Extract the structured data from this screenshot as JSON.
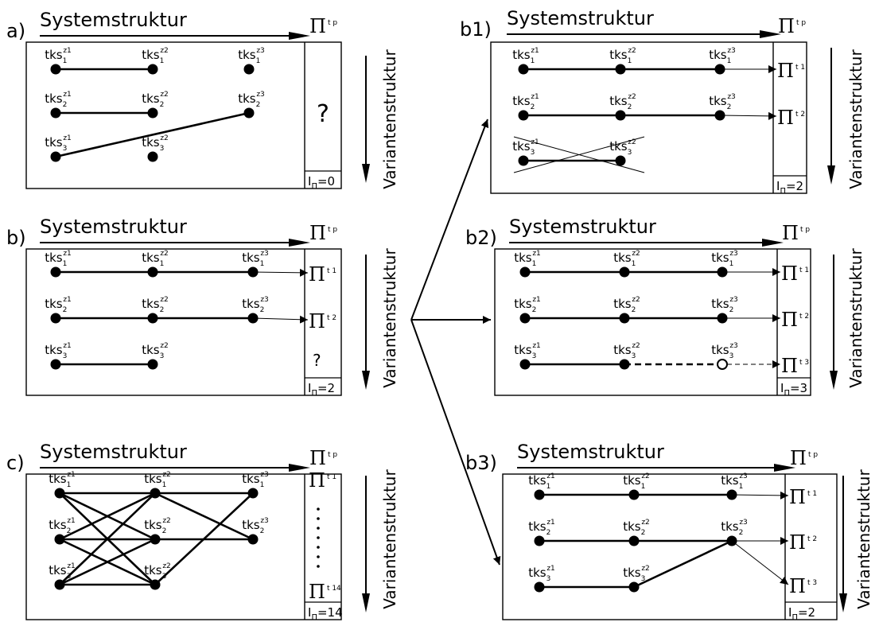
{
  "header_label": "Systemstruktur",
  "side_label": "Variantenstruktur",
  "pi_symbol": "Π",
  "node_base": "tks",
  "question_mark": "?",
  "dots": "⋮",
  "panels": [
    {
      "id": "a",
      "label": "a)",
      "pi_head": "t p",
      "pi_labels": [],
      "question": true,
      "question_small": false,
      "index": "=0",
      "edges_thick": [
        [
          0,
          1
        ],
        [
          3,
          4
        ],
        [
          5,
          6
        ]
      ],
      "edges_dashed": [],
      "thin_arrows": [],
      "crossed": false,
      "open_nodes": [],
      "nodes": [
        {
          "row": 1,
          "col": 1
        },
        {
          "row": 1,
          "col": 2
        },
        {
          "row": 1,
          "col": 3
        },
        {
          "row": 2,
          "col": 1
        },
        {
          "row": 2,
          "col": 2
        },
        {
          "row": 2,
          "col": 3
        },
        {
          "row": 3,
          "col": 1
        },
        {
          "row": 3,
          "col": 2
        }
      ]
    },
    {
      "id": "b",
      "label": "b)",
      "pi_head": "t p",
      "pi_labels": [
        "t 1",
        "t 2"
      ],
      "question": false,
      "question_small": true,
      "index": "=2",
      "edges_thick": [
        [
          0,
          1
        ],
        [
          1,
          2
        ],
        [
          3,
          4
        ],
        [
          4,
          5
        ],
        [
          6,
          7
        ]
      ],
      "edges_dashed": [],
      "thin_arrows": [
        [
          2,
          0
        ],
        [
          5,
          1
        ]
      ],
      "crossed": false,
      "open_nodes": [],
      "nodes": [
        {
          "row": 1,
          "col": 1
        },
        {
          "row": 1,
          "col": 2
        },
        {
          "row": 1,
          "col": 3
        },
        {
          "row": 2,
          "col": 1
        },
        {
          "row": 2,
          "col": 2
        },
        {
          "row": 2,
          "col": 3
        },
        {
          "row": 3,
          "col": 1
        },
        {
          "row": 3,
          "col": 2
        }
      ]
    },
    {
      "id": "c",
      "label": "c)",
      "pi_head": "t p",
      "pi_labels": [
        "t 1",
        "t 14"
      ],
      "question": false,
      "question_small": false,
      "index": "=14",
      "edges_thick": [
        [
          0,
          1
        ],
        [
          1,
          2
        ],
        [
          3,
          4
        ],
        [
          4,
          5
        ],
        [
          6,
          7
        ],
        [
          0,
          4
        ],
        [
          0,
          7
        ],
        [
          3,
          1
        ],
        [
          3,
          7
        ],
        [
          6,
          1
        ],
        [
          6,
          4
        ],
        [
          7,
          2
        ],
        [
          1,
          5
        ]
      ],
      "edges_dashed": [],
      "thin_arrows": [],
      "crossed": false,
      "open_nodes": [],
      "nodes": [
        {
          "row": 1,
          "col": 1
        },
        {
          "row": 1,
          "col": 2
        },
        {
          "row": 1,
          "col": 3
        },
        {
          "row": 2,
          "col": 1
        },
        {
          "row": 2,
          "col": 2
        },
        {
          "row": 2,
          "col": 3
        },
        {
          "row": 3,
          "col": 1
        },
        {
          "row": 3,
          "col": 2
        }
      ]
    },
    {
      "id": "b1",
      "label": "b1)",
      "pi_head": "t p",
      "pi_labels": [
        "t 1",
        "t 2"
      ],
      "question": false,
      "question_small": false,
      "index": "=2",
      "edges_thick": [
        [
          0,
          1
        ],
        [
          1,
          2
        ],
        [
          3,
          4
        ],
        [
          4,
          5
        ],
        [
          6,
          7
        ]
      ],
      "edges_dashed": [],
      "thin_arrows": [
        [
          2,
          0
        ],
        [
          5,
          1
        ]
      ],
      "crossed": true,
      "open_nodes": [],
      "nodes": [
        {
          "row": 1,
          "col": 1
        },
        {
          "row": 1,
          "col": 2
        },
        {
          "row": 1,
          "col": 3
        },
        {
          "row": 2,
          "col": 1
        },
        {
          "row": 2,
          "col": 2
        },
        {
          "row": 2,
          "col": 3
        },
        {
          "row": 3,
          "col": 1
        },
        {
          "row": 3,
          "col": 2
        }
      ]
    },
    {
      "id": "b2",
      "label": "b2)",
      "pi_head": "t p",
      "pi_labels": [
        "t 1",
        "t 2",
        "t 3"
      ],
      "question": false,
      "question_small": false,
      "index": "=3",
      "edges_thick": [
        [
          0,
          1
        ],
        [
          1,
          2
        ],
        [
          3,
          4
        ],
        [
          4,
          5
        ],
        [
          6,
          7
        ]
      ],
      "edges_dashed": [
        [
          7,
          8
        ]
      ],
      "thin_arrows": [
        [
          2,
          0
        ],
        [
          5,
          1
        ]
      ],
      "crossed": false,
      "open_nodes": [
        8
      ],
      "nodes": [
        {
          "row": 1,
          "col": 1
        },
        {
          "row": 1,
          "col": 2
        },
        {
          "row": 1,
          "col": 3
        },
        {
          "row": 2,
          "col": 1
        },
        {
          "row": 2,
          "col": 2
        },
        {
          "row": 2,
          "col": 3
        },
        {
          "row": 3,
          "col": 1
        },
        {
          "row": 3,
          "col": 2
        },
        {
          "row": 3,
          "col": 3
        }
      ]
    },
    {
      "id": "b3",
      "label": "b3)",
      "pi_head": "t p",
      "pi_labels": [
        "t 1",
        "t 2",
        "t 3"
      ],
      "question": false,
      "question_small": false,
      "index": "=2",
      "edges_thick": [
        [
          0,
          1
        ],
        [
          1,
          2
        ],
        [
          3,
          4
        ],
        [
          4,
          5
        ],
        [
          6,
          7
        ],
        [
          7,
          5
        ]
      ],
      "edges_dashed": [],
      "thin_arrows": [
        [
          2,
          0
        ],
        [
          5,
          1
        ],
        [
          5,
          2
        ]
      ],
      "crossed": false,
      "open_nodes": [],
      "nodes": [
        {
          "row": 1,
          "col": 1
        },
        {
          "row": 1,
          "col": 2
        },
        {
          "row": 1,
          "col": 3
        },
        {
          "row": 2,
          "col": 1
        },
        {
          "row": 2,
          "col": 2
        },
        {
          "row": 2,
          "col": 3
        },
        {
          "row": 3,
          "col": 1
        },
        {
          "row": 3,
          "col": 2
        }
      ]
    }
  ]
}
